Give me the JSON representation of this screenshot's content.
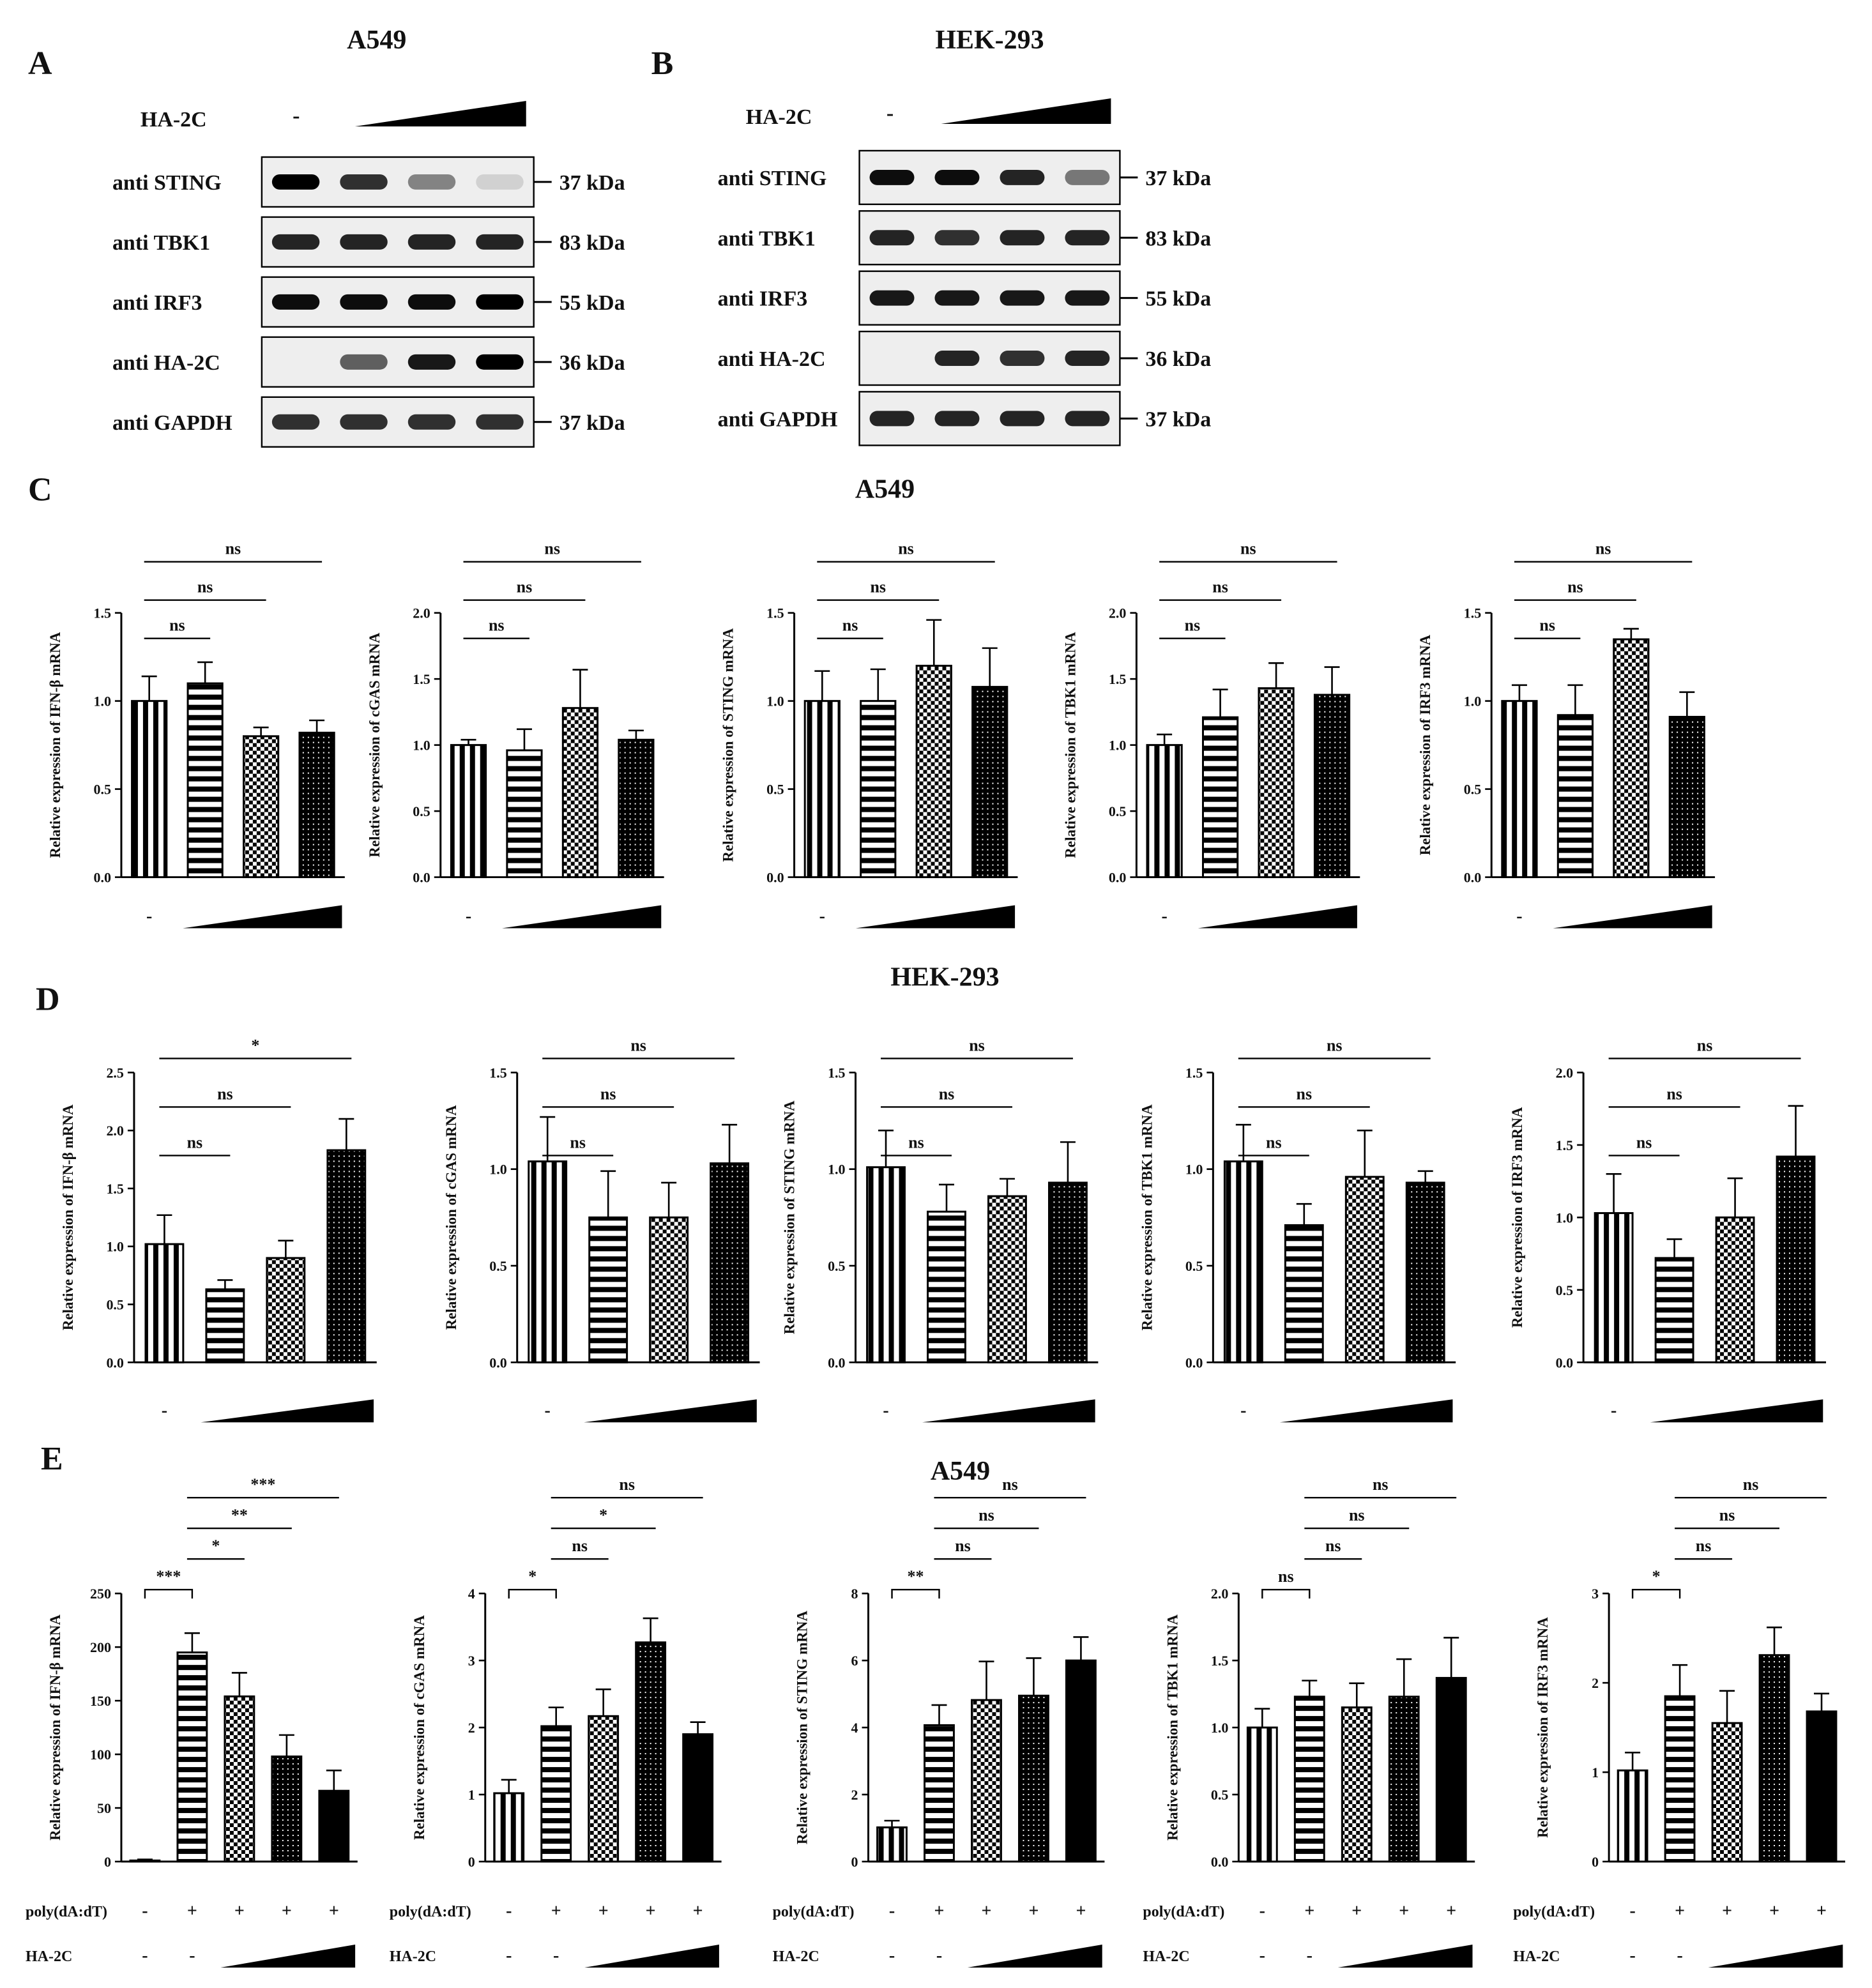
{
  "blots": [
    {
      "label": "A",
      "title": "A549",
      "treatment": "HA-2C",
      "control": "-",
      "rows": [
        {
          "antibody": "anti STING",
          "size": "37 kDa"
        },
        {
          "antibody": "anti TBK1",
          "size": "83 kDa"
        },
        {
          "antibody": "anti IRF3",
          "size": "55 kDa"
        },
        {
          "antibody": "anti HA-2C",
          "size": "36 kDa"
        },
        {
          "antibody": "anti GAPDH",
          "size": "37 kDa"
        }
      ]
    },
    {
      "label": "B",
      "title": "HEK-293",
      "treatment": "HA-2C",
      "control": "-",
      "rows": [
        {
          "antibody": "anti STING",
          "size": "37 kDa"
        },
        {
          "antibody": "anti TBK1",
          "size": "83 kDa"
        },
        {
          "antibody": "anti IRF3",
          "size": "55 kDa"
        },
        {
          "antibody": "anti HA-2C",
          "size": "36 kDa"
        },
        {
          "antibody": "anti GAPDH",
          "size": "37 kDa"
        }
      ]
    }
  ],
  "panels": [
    {
      "label": "C",
      "title": "A549"
    },
    {
      "label": "D",
      "title": "HEK-293"
    },
    {
      "label": "E",
      "title": "A549"
    }
  ],
  "chart_data": [
    {
      "type": "bar",
      "ylabel": "Relative expression of IFN-β mRNA",
      "values": [
        1.0,
        1.1,
        0.8,
        0.82
      ],
      "errors": [
        0.14,
        0.12,
        0.05,
        0.07
      ],
      "patterns": [
        "vertical",
        "horizontal",
        "checker",
        "dots"
      ],
      "ylim": [
        0,
        1.5
      ],
      "yticks": [
        {
          "value": 0,
          "label": "0.0"
        },
        {
          "value": 0.5,
          "label": "0.5"
        },
        {
          "value": 1,
          "label": "1.0"
        },
        {
          "value": 1.5,
          "label": "1.5"
        }
      ],
      "rows": [
        {
          "labels": [
            "-",
            null,
            null,
            null
          ]
        }
      ],
      "significance": [
        {
          "from": 0,
          "to": 1,
          "label": "ns"
        },
        {
          "from": 0,
          "to": 2,
          "label": "ns"
        },
        {
          "from": 0,
          "to": 3,
          "label": "ns"
        }
      ]
    },
    {
      "type": "bar",
      "ylabel": "Relative expression of cGAS mRNA",
      "values": [
        1.0,
        0.96,
        1.28,
        1.04
      ],
      "errors": [
        0.04,
        0.16,
        0.29,
        0.07
      ],
      "patterns": [
        "vertical",
        "horizontal",
        "checker",
        "dots"
      ],
      "ylim": [
        0,
        2
      ],
      "yticks": [
        {
          "value": 0,
          "label": "0.0"
        },
        {
          "value": 0.5,
          "label": "0.5"
        },
        {
          "value": 1,
          "label": "1.0"
        },
        {
          "value": 1.5,
          "label": "1.5"
        },
        {
          "value": 2,
          "label": "2.0"
        }
      ],
      "rows": [
        {
          "labels": [
            "-",
            null,
            null,
            null
          ]
        }
      ],
      "significance": [
        {
          "from": 0,
          "to": 1,
          "label": "ns"
        },
        {
          "from": 0,
          "to": 2,
          "label": "ns"
        },
        {
          "from": 0,
          "to": 3,
          "label": "ns"
        }
      ]
    },
    {
      "type": "bar",
      "ylabel": "Relative expression of STING mRNA",
      "values": [
        1.0,
        1.0,
        1.2,
        1.08
      ],
      "errors": [
        0.17,
        0.18,
        0.26,
        0.22
      ],
      "patterns": [
        "vertical",
        "horizontal",
        "checker",
        "dots"
      ],
      "ylim": [
        0,
        1.5
      ],
      "yticks": [
        {
          "value": 0,
          "label": "0.0"
        },
        {
          "value": 0.5,
          "label": "0.5"
        },
        {
          "value": 1,
          "label": "1.0"
        },
        {
          "value": 1.5,
          "label": "1.5"
        }
      ],
      "rows": [
        {
          "labels": [
            "-",
            null,
            null,
            null
          ]
        }
      ],
      "significance": [
        {
          "from": 0,
          "to": 1,
          "label": "ns"
        },
        {
          "from": 0,
          "to": 2,
          "label": "ns"
        },
        {
          "from": 0,
          "to": 3,
          "label": "ns"
        }
      ]
    },
    {
      "type": "bar",
      "ylabel": "Relative expression of TBK1 mRNA",
      "values": [
        1.0,
        1.21,
        1.43,
        1.38
      ],
      "errors": [
        0.08,
        0.21,
        0.19,
        0.21
      ],
      "patterns": [
        "vertical",
        "horizontal",
        "checker",
        "dots"
      ],
      "ylim": [
        0,
        2
      ],
      "yticks": [
        {
          "value": 0,
          "label": "0.0"
        },
        {
          "value": 0.5,
          "label": "0.5"
        },
        {
          "value": 1,
          "label": "1.0"
        },
        {
          "value": 1.5,
          "label": "1.5"
        },
        {
          "value": 2,
          "label": "2.0"
        }
      ],
      "rows": [
        {
          "labels": [
            "-",
            null,
            null,
            null
          ]
        }
      ],
      "significance": [
        {
          "from": 0,
          "to": 1,
          "label": "ns"
        },
        {
          "from": 0,
          "to": 2,
          "label": "ns"
        },
        {
          "from": 0,
          "to": 3,
          "label": "ns"
        }
      ]
    },
    {
      "type": "bar",
      "ylabel": "Relative expression of IRF3 mRNA",
      "values": [
        1.0,
        0.92,
        1.35,
        0.91
      ],
      "errors": [
        0.09,
        0.17,
        0.06,
        0.14
      ],
      "patterns": [
        "vertical",
        "horizontal",
        "checker",
        "dots"
      ],
      "ylim": [
        0,
        1.5
      ],
      "yticks": [
        {
          "value": 0,
          "label": "0.0"
        },
        {
          "value": 0.5,
          "label": "0.5"
        },
        {
          "value": 1,
          "label": "1.0"
        },
        {
          "value": 1.5,
          "label": "1.5"
        }
      ],
      "rows": [
        {
          "labels": [
            "-",
            null,
            null,
            null
          ]
        }
      ],
      "significance": [
        {
          "from": 0,
          "to": 1,
          "label": "ns"
        },
        {
          "from": 0,
          "to": 2,
          "label": "ns"
        },
        {
          "from": 0,
          "to": 3,
          "label": "ns"
        }
      ]
    },
    {
      "type": "bar",
      "ylabel": "Relative expression of IFN-β mRNA",
      "values": [
        1.02,
        0.63,
        0.9,
        1.83
      ],
      "errors": [
        0.25,
        0.08,
        0.15,
        0.27
      ],
      "patterns": [
        "vertical",
        "horizontal",
        "checker",
        "dots"
      ],
      "ylim": [
        0,
        2.5
      ],
      "yticks": [
        {
          "value": 0,
          "label": "0.0"
        },
        {
          "value": 0.5,
          "label": "0.5"
        },
        {
          "value": 1,
          "label": "1.0"
        },
        {
          "value": 1.5,
          "label": "1.5"
        },
        {
          "value": 2,
          "label": "2.0"
        },
        {
          "value": 2.5,
          "label": "2.5"
        }
      ],
      "rows": [
        {
          "labels": [
            "-",
            null,
            null,
            null
          ]
        }
      ],
      "significance": [
        {
          "from": 0,
          "to": 1,
          "label": "ns"
        },
        {
          "from": 0,
          "to": 2,
          "label": "ns"
        },
        {
          "from": 0,
          "to": 3,
          "label": "*"
        }
      ]
    },
    {
      "type": "bar",
      "ylabel": "Relative expression of cGAS mRNA",
      "values": [
        1.04,
        0.75,
        0.75,
        1.03
      ],
      "errors": [
        0.23,
        0.24,
        0.18,
        0.2
      ],
      "patterns": [
        "vertical",
        "horizontal",
        "checker",
        "dots"
      ],
      "ylim": [
        0,
        1.5
      ],
      "yticks": [
        {
          "value": 0,
          "label": "0.0"
        },
        {
          "value": 0.5,
          "label": "0.5"
        },
        {
          "value": 1,
          "label": "1.0"
        },
        {
          "value": 1.5,
          "label": "1.5"
        }
      ],
      "rows": [
        {
          "labels": [
            "-",
            null,
            null,
            null
          ]
        }
      ],
      "significance": [
        {
          "from": 0,
          "to": 1,
          "label": "ns"
        },
        {
          "from": 0,
          "to": 2,
          "label": "ns"
        },
        {
          "from": 0,
          "to": 3,
          "label": "ns"
        }
      ]
    },
    {
      "type": "bar",
      "ylabel": "Relative expression of STING mRNA",
      "values": [
        1.01,
        0.78,
        0.86,
        0.93
      ],
      "errors": [
        0.19,
        0.14,
        0.09,
        0.21
      ],
      "patterns": [
        "vertical",
        "horizontal",
        "checker",
        "dots"
      ],
      "ylim": [
        0,
        1.5
      ],
      "yticks": [
        {
          "value": 0,
          "label": "0.0"
        },
        {
          "value": 0.5,
          "label": "0.5"
        },
        {
          "value": 1,
          "label": "1.0"
        },
        {
          "value": 1.5,
          "label": "1.5"
        }
      ],
      "rows": [
        {
          "labels": [
            "-",
            null,
            null,
            null
          ]
        }
      ],
      "significance": [
        {
          "from": 0,
          "to": 1,
          "label": "ns"
        },
        {
          "from": 0,
          "to": 2,
          "label": "ns"
        },
        {
          "from": 0,
          "to": 3,
          "label": "ns"
        }
      ]
    },
    {
      "type": "bar",
      "ylabel": "Relative expression of TBK1 mRNA",
      "values": [
        1.04,
        0.71,
        0.96,
        0.93
      ],
      "errors": [
        0.19,
        0.11,
        0.24,
        0.06
      ],
      "patterns": [
        "vertical",
        "horizontal",
        "checker",
        "dots"
      ],
      "ylim": [
        0,
        1.5
      ],
      "yticks": [
        {
          "value": 0,
          "label": "0.0"
        },
        {
          "value": 0.5,
          "label": "0.5"
        },
        {
          "value": 1,
          "label": "1.0"
        },
        {
          "value": 1.5,
          "label": "1.5"
        }
      ],
      "rows": [
        {
          "labels": [
            "-",
            null,
            null,
            null
          ]
        }
      ],
      "significance": [
        {
          "from": 0,
          "to": 1,
          "label": "ns"
        },
        {
          "from": 0,
          "to": 2,
          "label": "ns"
        },
        {
          "from": 0,
          "to": 3,
          "label": "ns"
        }
      ]
    },
    {
      "type": "bar",
      "ylabel": "Relative expression of IRF3 mRNA",
      "values": [
        1.03,
        0.72,
        1.0,
        1.42
      ],
      "errors": [
        0.27,
        0.13,
        0.27,
        0.35
      ],
      "patterns": [
        "vertical",
        "horizontal",
        "checker",
        "dots"
      ],
      "ylim": [
        0,
        2
      ],
      "yticks": [
        {
          "value": 0,
          "label": "0.0"
        },
        {
          "value": 0.5,
          "label": "0.5"
        },
        {
          "value": 1,
          "label": "1.0"
        },
        {
          "value": 1.5,
          "label": "1.5"
        },
        {
          "value": 2,
          "label": "2.0"
        }
      ],
      "rows": [
        {
          "labels": [
            "-",
            null,
            null,
            null
          ]
        }
      ],
      "significance": [
        {
          "from": 0,
          "to": 1,
          "label": "ns"
        },
        {
          "from": 0,
          "to": 2,
          "label": "ns"
        },
        {
          "from": 0,
          "to": 3,
          "label": "ns"
        }
      ]
    },
    {
      "type": "bar",
      "ylabel": "Relative expression of IFN-β mRNA",
      "values": [
        1,
        195,
        154,
        98,
        66
      ],
      "errors": [
        1,
        18,
        22,
        20,
        19
      ],
      "patterns": [
        "vertical",
        "horizontal",
        "checker",
        "dots",
        "solid"
      ],
      "ylim": [
        0,
        250
      ],
      "yticks": [
        0,
        50,
        100,
        150,
        200,
        250
      ],
      "rows": [
        {
          "name": "poly(dA:dT)",
          "labels": [
            "-",
            "+",
            "+",
            "+",
            "+"
          ]
        },
        {
          "name": "HA-2C",
          "labels": [
            "-",
            "-",
            null,
            null,
            null
          ]
        }
      ],
      "significance": [
        {
          "from": 0,
          "to": 1,
          "label": "***",
          "bracket": true
        },
        {
          "from": 1,
          "to": 2,
          "label": "*"
        },
        {
          "from": 1,
          "to": 3,
          "label": "**"
        },
        {
          "from": 1,
          "to": 4,
          "label": "***"
        }
      ]
    },
    {
      "type": "bar",
      "ylabel": "Relative expression of cGAS mRNA",
      "values": [
        1.02,
        2.02,
        2.17,
        3.27,
        1.9
      ],
      "errors": [
        0.2,
        0.28,
        0.4,
        0.36,
        0.18
      ],
      "patterns": [
        "vertical",
        "horizontal",
        "checker",
        "dots",
        "solid"
      ],
      "ylim": [
        0,
        4
      ],
      "yticks": [
        0,
        1,
        2,
        3,
        4
      ],
      "rows": [
        {
          "name": "poly(dA:dT)",
          "labels": [
            "-",
            "+",
            "+",
            "+",
            "+"
          ]
        },
        {
          "name": "HA-2C",
          "labels": [
            "-",
            "-",
            null,
            null,
            null
          ]
        }
      ],
      "significance": [
        {
          "from": 0,
          "to": 1,
          "label": "*",
          "bracket": true
        },
        {
          "from": 1,
          "to": 2,
          "label": "ns"
        },
        {
          "from": 1,
          "to": 3,
          "label": "*"
        },
        {
          "from": 1,
          "to": 4,
          "label": "ns"
        }
      ]
    },
    {
      "type": "bar",
      "ylabel": "Relative expression of STING mRNA",
      "values": [
        1.02,
        4.07,
        4.82,
        4.95,
        6.0
      ],
      "errors": [
        0.2,
        0.6,
        1.15,
        1.12,
        0.7
      ],
      "patterns": [
        "vertical",
        "horizontal",
        "checker",
        "dots",
        "solid"
      ],
      "ylim": [
        0,
        8
      ],
      "yticks": [
        0,
        2,
        4,
        6,
        8
      ],
      "rows": [
        {
          "name": "poly(dA:dT)",
          "labels": [
            "-",
            "+",
            "+",
            "+",
            "+"
          ]
        },
        {
          "name": "HA-2C",
          "labels": [
            "-",
            "-",
            null,
            null,
            null
          ]
        }
      ],
      "significance": [
        {
          "from": 0,
          "to": 1,
          "label": "**",
          "bracket": true
        },
        {
          "from": 1,
          "to": 2,
          "label": "ns"
        },
        {
          "from": 1,
          "to": 3,
          "label": "ns"
        },
        {
          "from": 1,
          "to": 4,
          "label": "ns"
        }
      ]
    },
    {
      "type": "bar",
      "ylabel": "Relative expression of TBK1 mRNA",
      "values": [
        1.0,
        1.23,
        1.15,
        1.23,
        1.37
      ],
      "errors": [
        0.14,
        0.12,
        0.18,
        0.28,
        0.3
      ],
      "patterns": [
        "vertical",
        "horizontal",
        "checker",
        "dots",
        "solid"
      ],
      "ylim": [
        0,
        2
      ],
      "yticks": [
        {
          "value": 0,
          "label": "0.0"
        },
        {
          "value": 0.5,
          "label": "0.5"
        },
        {
          "value": 1,
          "label": "1.0"
        },
        {
          "value": 1.5,
          "label": "1.5"
        },
        {
          "value": 2,
          "label": "2.0"
        }
      ],
      "rows": [
        {
          "name": "poly(dA:dT)",
          "labels": [
            "-",
            "+",
            "+",
            "+",
            "+"
          ]
        },
        {
          "name": "HA-2C",
          "labels": [
            "-",
            "-",
            null,
            null,
            null
          ]
        }
      ],
      "significance": [
        {
          "from": 0,
          "to": 1,
          "label": "ns",
          "bracket": true
        },
        {
          "from": 1,
          "to": 2,
          "label": "ns"
        },
        {
          "from": 1,
          "to": 3,
          "label": "ns"
        },
        {
          "from": 1,
          "to": 4,
          "label": "ns"
        }
      ]
    },
    {
      "type": "bar",
      "ylabel": "Relative expression of IRF3 mRNA",
      "values": [
        1.02,
        1.85,
        1.55,
        2.31,
        1.68
      ],
      "errors": [
        0.2,
        0.35,
        0.36,
        0.31,
        0.2
      ],
      "patterns": [
        "vertical",
        "horizontal",
        "checker",
        "dots",
        "solid"
      ],
      "ylim": [
        0,
        3
      ],
      "yticks": [
        0,
        1,
        2,
        3
      ],
      "rows": [
        {
          "name": "poly(dA:dT)",
          "labels": [
            "-",
            "+",
            "+",
            "+",
            "+"
          ]
        },
        {
          "name": "HA-2C",
          "labels": [
            "-",
            "-",
            null,
            null,
            null
          ]
        }
      ],
      "significance": [
        {
          "from": 0,
          "to": 1,
          "label": "*",
          "bracket": true
        },
        {
          "from": 1,
          "to": 2,
          "label": "ns"
        },
        {
          "from": 1,
          "to": 3,
          "label": "ns"
        },
        {
          "from": 1,
          "to": 4,
          "label": "ns"
        }
      ]
    }
  ]
}
